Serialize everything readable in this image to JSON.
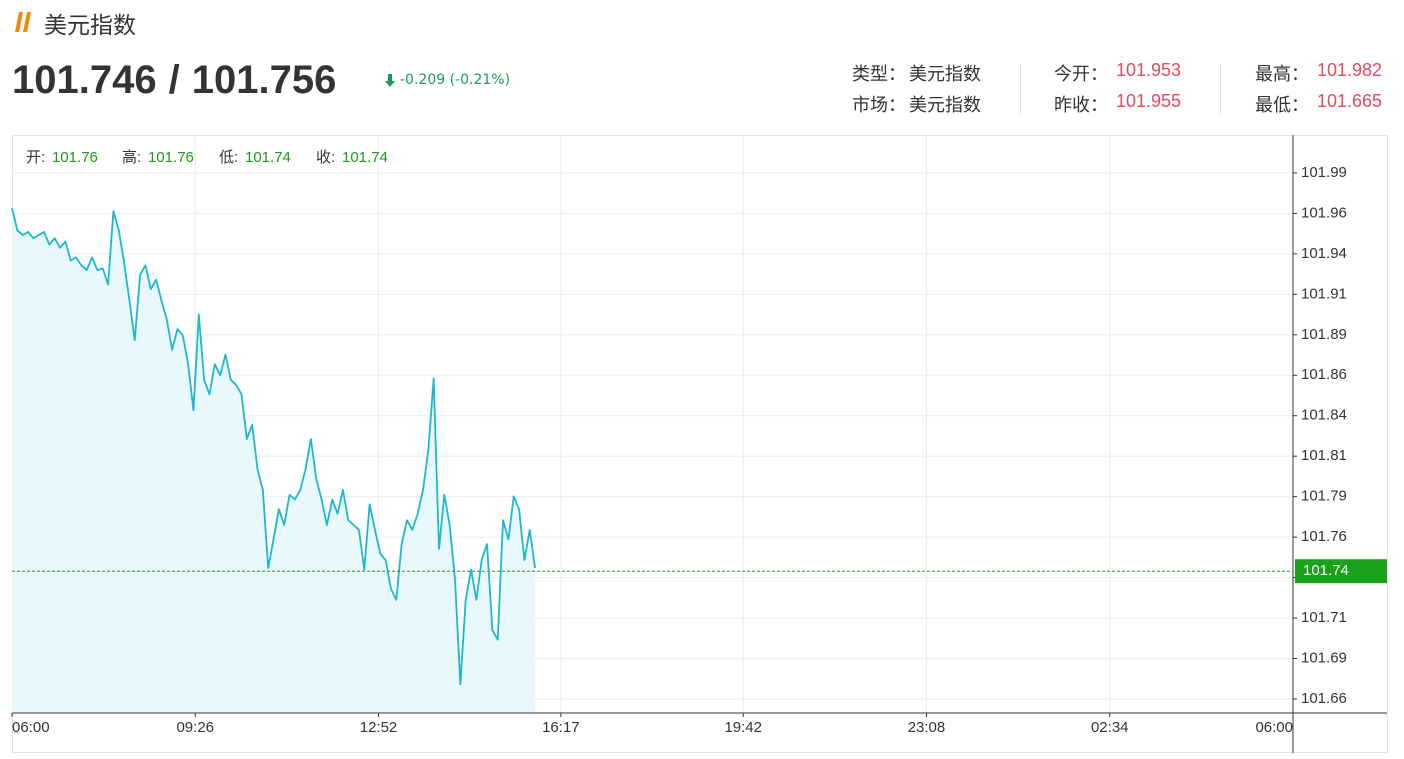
{
  "header": {
    "title": "美元指数"
  },
  "quote": {
    "bid": 101.746,
    "separator": "/",
    "ask": 101.756,
    "change": "-0.209 (-0.21%)"
  },
  "stats": [
    [
      {
        "label": "类型：",
        "value": "美元指数"
      },
      {
        "label": "今开：",
        "value": 101.953
      },
      {
        "label": "最高：",
        "value": 101.982
      }
    ],
    [
      {
        "label": "市场：",
        "value": "美元指数"
      },
      {
        "label": "昨收：",
        "value": 101.955
      },
      {
        "label": "最低：",
        "value": 101.665
      }
    ]
  ],
  "chart_data": {
    "type": "line",
    "ohlc": [
      {
        "label": "开:",
        "value": 101.76
      },
      {
        "label": "高:",
        "value": 101.76
      },
      {
        "label": "低:",
        "value": 101.74
      },
      {
        "label": "收:",
        "value": 101.74
      }
    ],
    "x": [
      0,
      6,
      12,
      18,
      24,
      30,
      36,
      42,
      48,
      54,
      60,
      66,
      72,
      78,
      84,
      90,
      96,
      102,
      108,
      114,
      120,
      126,
      132,
      138,
      144,
      150,
      156,
      162,
      168,
      174,
      180,
      186,
      192,
      198,
      204,
      210,
      216,
      222,
      228,
      234,
      240,
      246,
      252,
      258,
      264,
      270,
      276,
      282,
      288,
      294,
      300,
      306,
      312,
      318,
      324,
      330,
      336,
      342,
      348,
      354,
      360,
      366,
      372,
      378,
      384,
      390,
      396,
      402,
      408,
      414,
      420,
      426,
      432,
      438,
      444,
      450,
      456,
      462,
      468,
      474,
      480,
      486,
      492,
      498,
      504,
      510,
      516,
      522,
      528,
      534,
      540,
      546,
      552,
      558,
      564,
      570,
      576,
      582,
      588
    ],
    "values": [
      101.968,
      101.954,
      101.951,
      101.953,
      101.949,
      101.951,
      101.953,
      101.945,
      101.949,
      101.943,
      101.947,
      101.935,
      101.937,
      101.932,
      101.929,
      101.937,
      101.929,
      101.93,
      101.92,
      101.966,
      101.954,
      101.934,
      101.91,
      101.885,
      101.926,
      101.932,
      101.917,
      101.923,
      101.91,
      101.898,
      101.879,
      101.892,
      101.888,
      101.87,
      101.841,
      101.901,
      101.86,
      101.851,
      101.87,
      101.863,
      101.876,
      101.86,
      101.857,
      101.851,
      101.823,
      101.832,
      101.804,
      101.791,
      101.742,
      101.76,
      101.779,
      101.769,
      101.788,
      101.785,
      101.791,
      101.804,
      101.823,
      101.798,
      101.785,
      101.769,
      101.785,
      101.776,
      101.791,
      101.772,
      101.769,
      101.766,
      101.741,
      101.782,
      101.766,
      101.751,
      101.747,
      101.729,
      101.722,
      101.757,
      101.772,
      101.766,
      101.776,
      101.791,
      101.816,
      101.861,
      101.754,
      101.788,
      101.769,
      101.735,
      101.669,
      101.722,
      101.741,
      101.722,
      101.747,
      101.757,
      101.703,
      101.697,
      101.772,
      101.76,
      101.787,
      101.779,
      101.747,
      101.766,
      101.742
    ],
    "color": "#1cb8d0",
    "fill": "#e9f8fa",
    "last_value": 101.74,
    "last_color": "#1aa31a",
    "xlim": [
      0,
      1440
    ],
    "xticks": [
      {
        "value": 0,
        "label": "06:00"
      },
      {
        "value": 206,
        "label": "09:26"
      },
      {
        "value": 412,
        "label": "12:52"
      },
      {
        "value": 617,
        "label": "16:17"
      },
      {
        "value": 822,
        "label": "19:42"
      },
      {
        "value": 1028,
        "label": "23:08"
      },
      {
        "value": 1234,
        "label": "02:34"
      },
      {
        "value": 1440,
        "label": "06:00"
      }
    ],
    "ylim": [
      101.651,
      102.0138
    ],
    "yticks": [
      {
        "value": 101.99,
        "label": "101.99"
      },
      {
        "value": 101.9646,
        "label": "101.96"
      },
      {
        "value": 101.9392,
        "label": "101.94"
      },
      {
        "value": 101.9138,
        "label": "101.91"
      },
      {
        "value": 101.8884,
        "label": "101.89"
      },
      {
        "value": 101.863,
        "label": "101.86"
      },
      {
        "value": 101.8376,
        "label": "101.84"
      },
      {
        "value": 101.8122,
        "label": "101.81"
      },
      {
        "value": 101.7868,
        "label": "101.79"
      },
      {
        "value": 101.7614,
        "label": "101.76"
      },
      {
        "value": 101.736,
        "label": "101.74"
      },
      {
        "value": 101.7106,
        "label": "101.71"
      },
      {
        "value": 101.6852,
        "label": "101.69"
      },
      {
        "value": 101.6598,
        "label": "101.66"
      }
    ],
    "grid": true
  }
}
